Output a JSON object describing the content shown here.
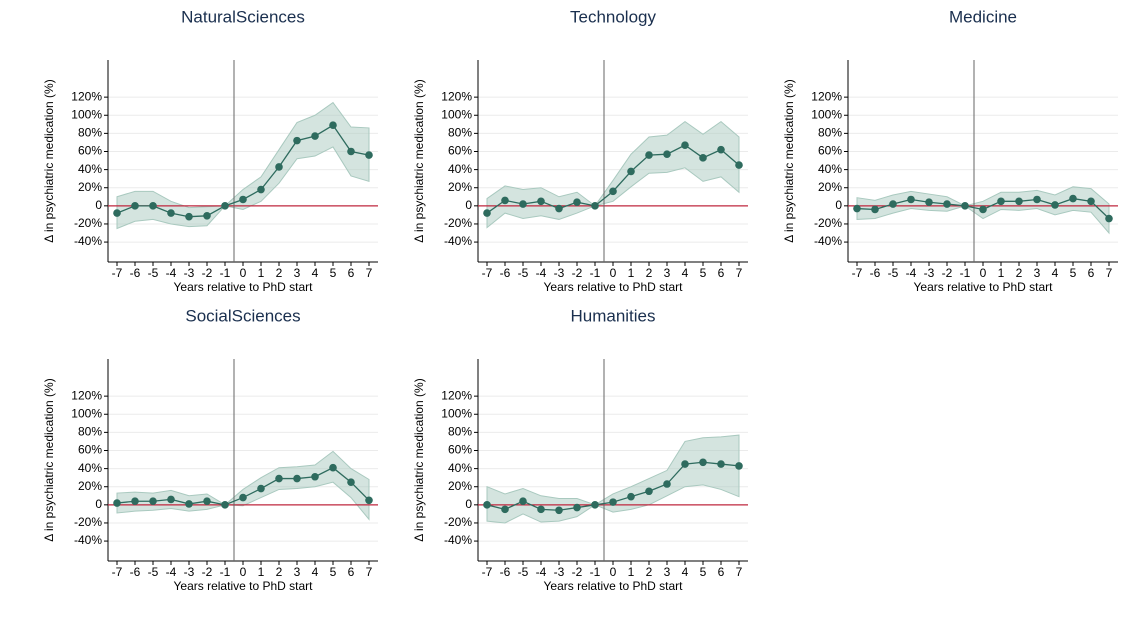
{
  "chart_data": [
    {
      "type": "line",
      "title": "NaturalSciences",
      "xlabel": "Years relative to PhD start",
      "ylabel": "Δ in psychiatric medication (%)",
      "x": [
        -7,
        -6,
        -5,
        -4,
        -3,
        -2,
        -1,
        0,
        1,
        2,
        3,
        4,
        5,
        6,
        7
      ],
      "values": [
        -8,
        0,
        0,
        -8,
        -12,
        -11,
        0,
        7,
        18,
        43,
        72,
        77,
        89,
        60,
        56
      ],
      "lower": [
        -25,
        -17,
        -15,
        -20,
        -23,
        -22,
        0,
        -4,
        5,
        25,
        52,
        55,
        65,
        33,
        27
      ],
      "upper": [
        10,
        16,
        16,
        5,
        -2,
        -1,
        0,
        18,
        32,
        62,
        92,
        100,
        114,
        87,
        86
      ],
      "color": "#2e6b5e",
      "band_color": "#a9c9bf",
      "hline": 0,
      "hline_color": "#c0283f",
      "vline": -0.5,
      "xlim": [
        -7.5,
        7.5
      ],
      "xticks": [
        -7,
        -6,
        -5,
        -4,
        -3,
        -2,
        -1,
        0,
        1,
        2,
        3,
        4,
        5,
        6,
        7
      ],
      "ylim": [
        -62,
        161
      ],
      "yticks": [
        {
          "value": -40,
          "label": "-40%"
        },
        {
          "value": -20,
          "label": "-20%"
        },
        0,
        {
          "value": 20,
          "label": "20%"
        },
        {
          "value": 40,
          "label": "40%"
        },
        {
          "value": 60,
          "label": "60%"
        },
        {
          "value": 80,
          "label": "80%"
        },
        {
          "value": 100,
          "label": "100%"
        },
        {
          "value": 120,
          "label": "120%"
        }
      ],
      "grid": true
    },
    {
      "type": "line",
      "title": "Technology",
      "xlabel": "Years relative to PhD start",
      "ylabel": "Δ in psychiatric medication (%)",
      "x": [
        -7,
        -6,
        -5,
        -4,
        -3,
        -2,
        -1,
        0,
        1,
        2,
        3,
        4,
        5,
        6,
        7
      ],
      "values": [
        -8,
        6,
        2,
        5,
        -3,
        4,
        0,
        16,
        38,
        56,
        57,
        67,
        53,
        62,
        45
      ],
      "lower": [
        -24,
        -8,
        -14,
        -11,
        -15,
        -8,
        0,
        5,
        21,
        36,
        37,
        42,
        27,
        32,
        15
      ],
      "upper": [
        8,
        22,
        18,
        20,
        10,
        15,
        0,
        28,
        57,
        76,
        78,
        93,
        79,
        93,
        76
      ],
      "color": "#2e6b5e",
      "band_color": "#a9c9bf",
      "hline": 0,
      "hline_color": "#c0283f",
      "vline": -0.5,
      "xlim": [
        -7.5,
        7.5
      ],
      "xticks": [
        -7,
        -6,
        -5,
        -4,
        -3,
        -2,
        -1,
        0,
        1,
        2,
        3,
        4,
        5,
        6,
        7
      ],
      "ylim": [
        -62,
        161
      ],
      "yticks": [
        {
          "value": -40,
          "label": "-40%"
        },
        {
          "value": -20,
          "label": "-20%"
        },
        0,
        {
          "value": 20,
          "label": "20%"
        },
        {
          "value": 40,
          "label": "40%"
        },
        {
          "value": 60,
          "label": "60%"
        },
        {
          "value": 80,
          "label": "80%"
        },
        {
          "value": 100,
          "label": "100%"
        },
        {
          "value": 120,
          "label": "120%"
        }
      ],
      "grid": true
    },
    {
      "type": "line",
      "title": "Medicine",
      "xlabel": "Years relative to PhD start",
      "ylabel": "Δ in psychiatric medication (%)",
      "x": [
        -7,
        -6,
        -5,
        -4,
        -3,
        -2,
        -1,
        0,
        1,
        2,
        3,
        4,
        5,
        6,
        7
      ],
      "values": [
        -3,
        -4,
        2,
        7,
        4,
        2,
        0,
        -4,
        5,
        5,
        7,
        1,
        8,
        5,
        -14
      ],
      "lower": [
        -15,
        -14,
        -8,
        -3,
        -5,
        -6,
        0,
        -14,
        -4,
        -5,
        -3,
        -10,
        -5,
        -7,
        -30
      ],
      "upper": [
        9,
        6,
        12,
        16,
        13,
        10,
        0,
        5,
        15,
        15,
        17,
        12,
        21,
        19,
        2
      ],
      "color": "#2e6b5e",
      "band_color": "#a9c9bf",
      "hline": 0,
      "hline_color": "#c0283f",
      "vline": -0.5,
      "xlim": [
        -7.5,
        7.5
      ],
      "xticks": [
        -7,
        -6,
        -5,
        -4,
        -3,
        -2,
        -1,
        0,
        1,
        2,
        3,
        4,
        5,
        6,
        7
      ],
      "ylim": [
        -62,
        161
      ],
      "yticks": [
        {
          "value": -40,
          "label": "-40%"
        },
        {
          "value": -20,
          "label": "-20%"
        },
        0,
        {
          "value": 20,
          "label": "20%"
        },
        {
          "value": 40,
          "label": "40%"
        },
        {
          "value": 60,
          "label": "60%"
        },
        {
          "value": 80,
          "label": "80%"
        },
        {
          "value": 100,
          "label": "100%"
        },
        {
          "value": 120,
          "label": "120%"
        }
      ],
      "grid": true
    },
    {
      "type": "line",
      "title": "SocialSciences",
      "xlabel": "Years relative to PhD start",
      "ylabel": "Δ in psychiatric medication (%)",
      "x": [
        -7,
        -6,
        -5,
        -4,
        -3,
        -2,
        -1,
        0,
        1,
        2,
        3,
        4,
        5,
        6,
        7
      ],
      "values": [
        2,
        4,
        4,
        6,
        1,
        4,
        0,
        8,
        18,
        29,
        29,
        31,
        41,
        25,
        5
      ],
      "lower": [
        -9,
        -7,
        -6,
        -4,
        -7,
        -5,
        0,
        -1,
        8,
        17,
        18,
        20,
        25,
        8,
        -16
      ],
      "upper": [
        13,
        14,
        13,
        16,
        10,
        12,
        0,
        17,
        30,
        41,
        42,
        44,
        59,
        40,
        28
      ],
      "color": "#2e6b5e",
      "band_color": "#a9c9bf",
      "hline": 0,
      "hline_color": "#c0283f",
      "vline": -0.5,
      "xlim": [
        -7.5,
        7.5
      ],
      "xticks": [
        -7,
        -6,
        -5,
        -4,
        -3,
        -2,
        -1,
        0,
        1,
        2,
        3,
        4,
        5,
        6,
        7
      ],
      "ylim": [
        -62,
        161
      ],
      "yticks": [
        {
          "value": -40,
          "label": "-40%"
        },
        {
          "value": -20,
          "label": "-20%"
        },
        0,
        {
          "value": 20,
          "label": "20%"
        },
        {
          "value": 40,
          "label": "40%"
        },
        {
          "value": 60,
          "label": "60%"
        },
        {
          "value": 80,
          "label": "80%"
        },
        {
          "value": 100,
          "label": "100%"
        },
        {
          "value": 120,
          "label": "120%"
        }
      ],
      "grid": true
    },
    {
      "type": "line",
      "title": "Humanities",
      "xlabel": "Years relative to PhD start",
      "ylabel": "Δ in psychiatric medication (%)",
      "x": [
        -7,
        -6,
        -5,
        -4,
        -3,
        -2,
        -1,
        0,
        1,
        2,
        3,
        4,
        5,
        6,
        7
      ],
      "values": [
        0,
        -5,
        4,
        -5,
        -6,
        -3,
        0,
        3,
        9,
        15,
        23,
        45,
        47,
        45,
        43
      ],
      "lower": [
        -18,
        -20,
        -10,
        -19,
        -18,
        -13,
        0,
        -8,
        -5,
        0,
        10,
        20,
        22,
        17,
        9
      ],
      "upper": [
        20,
        12,
        18,
        10,
        7,
        7,
        0,
        12,
        20,
        29,
        38,
        70,
        74,
        75,
        77
      ],
      "color": "#2e6b5e",
      "band_color": "#a9c9bf",
      "hline": 0,
      "hline_color": "#c0283f",
      "vline": -0.5,
      "xlim": [
        -7.5,
        7.5
      ],
      "xticks": [
        -7,
        -6,
        -5,
        -4,
        -3,
        -2,
        -1,
        0,
        1,
        2,
        3,
        4,
        5,
        6,
        7
      ],
      "ylim": [
        -62,
        161
      ],
      "yticks": [
        {
          "value": -40,
          "label": "-40%"
        },
        {
          "value": -20,
          "label": "-20%"
        },
        0,
        {
          "value": 20,
          "label": "20%"
        },
        {
          "value": 40,
          "label": "40%"
        },
        {
          "value": 60,
          "label": "60%"
        },
        {
          "value": 80,
          "label": "80%"
        },
        {
          "value": 100,
          "label": "100%"
        },
        {
          "value": 120,
          "label": "120%"
        }
      ],
      "grid": true
    }
  ]
}
